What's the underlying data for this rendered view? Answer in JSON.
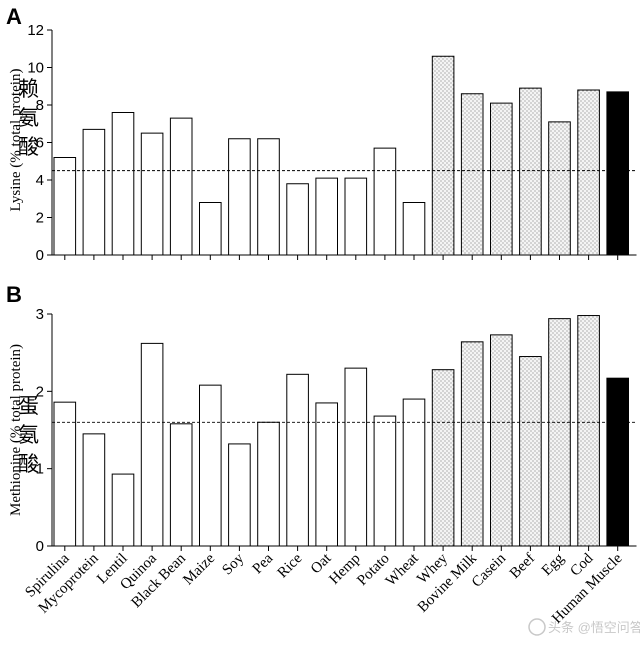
{
  "chart_data": [
    {
      "panel_label": "A",
      "type": "bar",
      "ylabel": "Lysine (% total protein)",
      "annotation": "赖氨酸",
      "ylim": [
        0,
        12
      ],
      "yticks": [
        "0",
        "2",
        "4",
        "6",
        "8",
        "10",
        "12"
      ],
      "reference_line": 4.5,
      "categories": [
        "Spirulina",
        "Mycoprotein",
        "Lentil",
        "Quinoa",
        "Black Bean",
        "Maize",
        "Soy",
        "Pea",
        "Rice",
        "Oat",
        "Hemp",
        "Potato",
        "Wheat",
        "Whey",
        "Bovine Milk",
        "Casein",
        "Beef",
        "Egg",
        "Cod",
        "Human Muscle"
      ],
      "values": [
        5.2,
        6.7,
        7.6,
        6.5,
        7.3,
        2.8,
        6.2,
        6.2,
        3.8,
        4.1,
        4.1,
        5.7,
        2.8,
        10.6,
        8.6,
        8.1,
        8.9,
        7.1,
        8.8,
        8.7
      ],
      "groups": [
        "plant",
        "plant",
        "plant",
        "plant",
        "plant",
        "plant",
        "plant",
        "plant",
        "plant",
        "plant",
        "plant",
        "plant",
        "plant",
        "animal",
        "animal",
        "animal",
        "animal",
        "animal",
        "animal",
        "human"
      ]
    },
    {
      "panel_label": "B",
      "type": "bar",
      "ylabel": "Methionine (% total protein)",
      "annotation": "蛋氨酸",
      "ylim": [
        0,
        3
      ],
      "yticks": [
        "0",
        "1",
        "2",
        "3"
      ],
      "reference_line": 1.6,
      "categories": [
        "Spirulina",
        "Mycoprotein",
        "Lentil",
        "Quinoa",
        "Black Bean",
        "Maize",
        "Soy",
        "Pea",
        "Rice",
        "Oat",
        "Hemp",
        "Potato",
        "Wheat",
        "Whey",
        "Bovine Milk",
        "Casein",
        "Beef",
        "Egg",
        "Cod",
        "Human Muscle"
      ],
      "values": [
        1.86,
        1.45,
        0.93,
        2.62,
        1.58,
        2.08,
        1.32,
        1.6,
        2.22,
        1.85,
        2.3,
        1.68,
        1.9,
        2.28,
        2.64,
        2.73,
        2.45,
        2.94,
        2.98,
        2.17
      ],
      "groups": [
        "plant",
        "plant",
        "plant",
        "plant",
        "plant",
        "plant",
        "plant",
        "plant",
        "plant",
        "plant",
        "plant",
        "plant",
        "plant",
        "animal",
        "animal",
        "animal",
        "animal",
        "animal",
        "animal",
        "human"
      ]
    }
  ],
  "watermark": "头条 @悟空问答",
  "colors": {
    "plant_fill": "#ffffff",
    "animal_fill": "#f4f4f4",
    "human_fill": "#000000",
    "stroke": "#000000"
  }
}
